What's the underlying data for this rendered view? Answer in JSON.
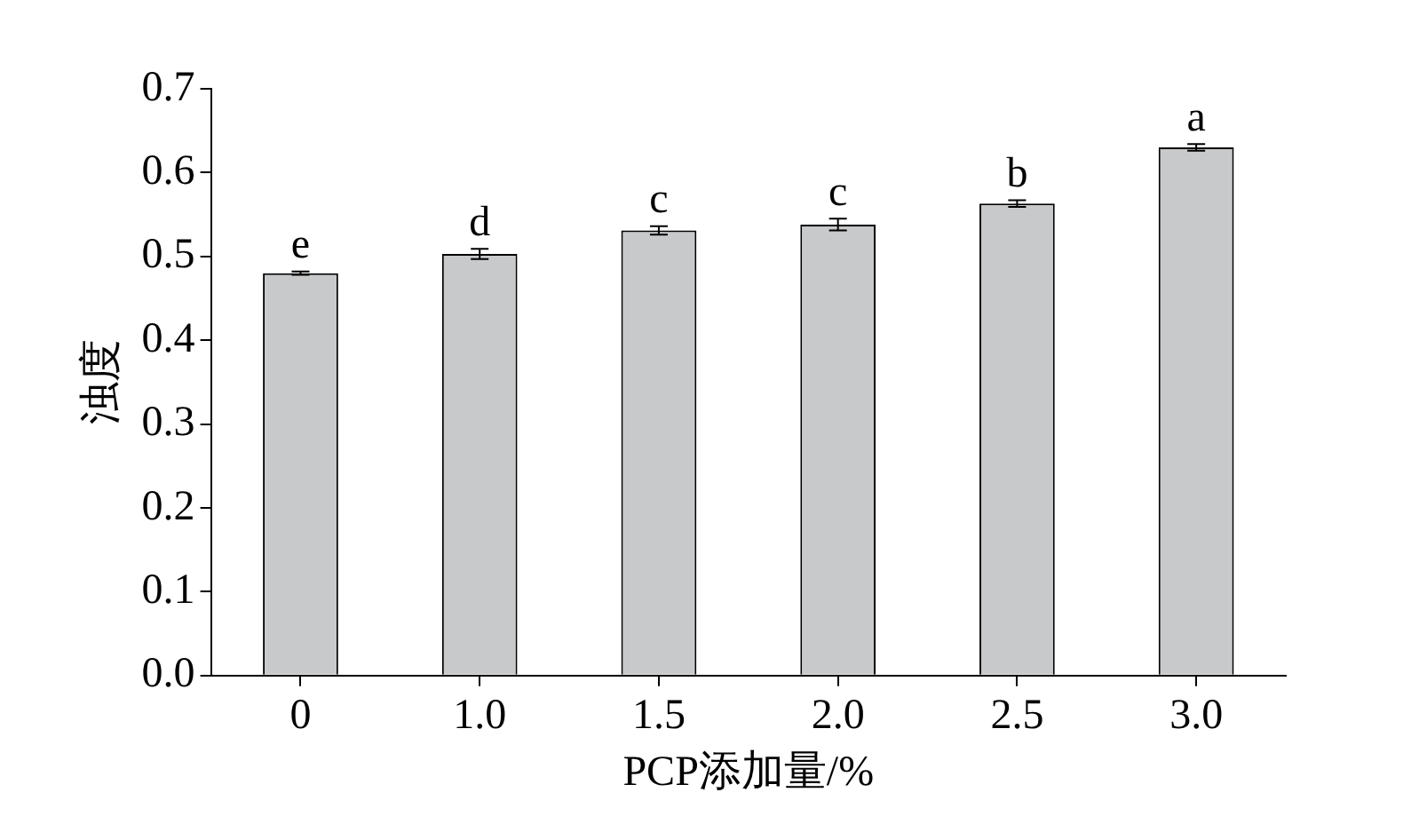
{
  "chart_data": {
    "type": "bar",
    "xlabel": "PCP添加量/%",
    "ylabel": "浊度",
    "categories": [
      "0",
      "1.0",
      "1.5",
      "2.0",
      "2.5",
      "3.0"
    ],
    "values": [
      0.48,
      0.503,
      0.531,
      0.538,
      0.563,
      0.63
    ],
    "errors": [
      0.002,
      0.006,
      0.005,
      0.007,
      0.004,
      0.004
    ],
    "color": "#c8c9cb",
    "ylim": [
      0,
      0.7
    ],
    "yticks": [
      {
        "value": 0,
        "label": "0.0"
      },
      {
        "value": 0.1,
        "label": "0.1"
      },
      {
        "value": 0.2,
        "label": "0.2"
      },
      {
        "value": 0.3,
        "label": "0.3"
      },
      {
        "value": 0.4,
        "label": "0.4"
      },
      {
        "value": 0.5,
        "label": "0.5"
      },
      {
        "value": 0.6,
        "label": "0.6"
      },
      {
        "value": 0.7,
        "label": "0.7"
      }
    ],
    "annotations": [
      {
        "text": "e",
        "x": "0",
        "y": 0.48
      },
      {
        "text": "d",
        "x": "1.0",
        "y": 0.503
      },
      {
        "text": "c",
        "x": "1.5",
        "y": 0.531
      },
      {
        "text": "c",
        "x": "2.0",
        "y": 0.538
      },
      {
        "text": "b",
        "x": "2.5",
        "y": 0.563
      },
      {
        "text": "a",
        "x": "3.0",
        "y": 0.63
      }
    ],
    "grid": false,
    "legend": false
  }
}
